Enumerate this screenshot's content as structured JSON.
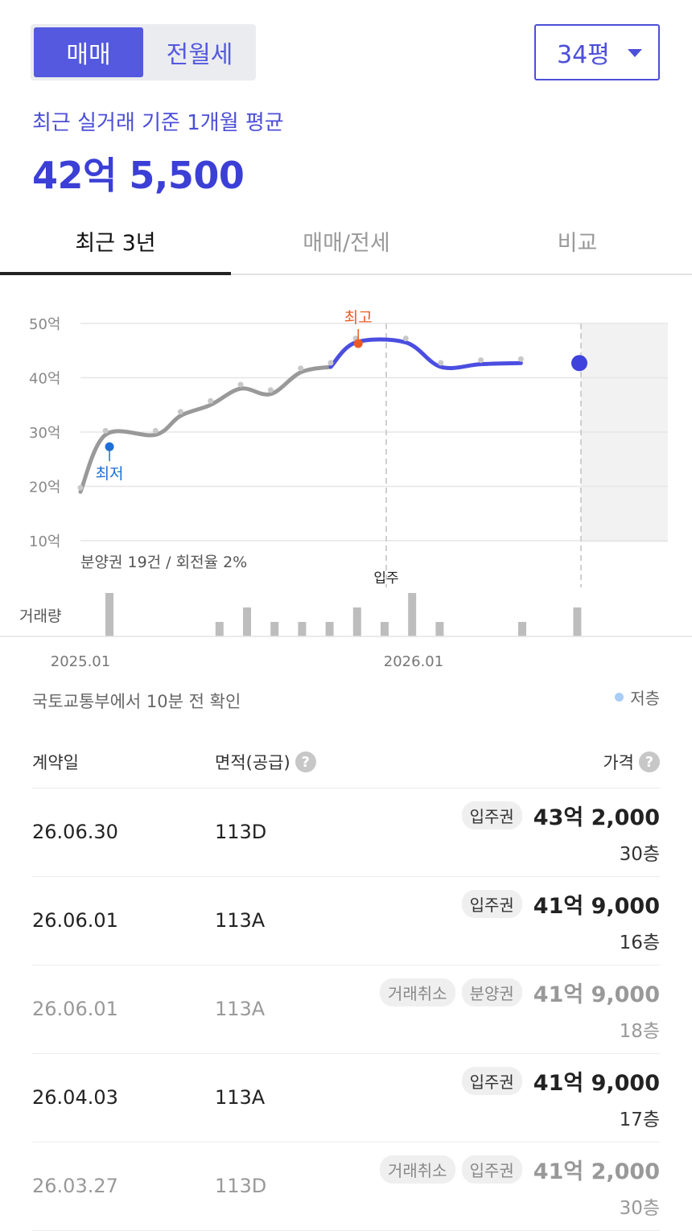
{
  "trade_toggle": {
    "sale": "매매",
    "rent": "전월세"
  },
  "size_selector": {
    "value": "34평"
  },
  "summary": {
    "label": "최근 실거래 기준 1개월 평균",
    "price": "42억 5,500"
  },
  "tabs": [
    "최근 3년",
    "매매/전세",
    "비교"
  ],
  "chart_data": {
    "type": "line",
    "yticks": [
      "50억",
      "40억",
      "30억",
      "20억",
      "10억"
    ],
    "y_values": [
      50,
      40,
      30,
      20,
      10
    ],
    "ylim": [
      10,
      50
    ],
    "x_labels": [
      "2025.01",
      "2026.01"
    ],
    "series": [
      {
        "segment": "past",
        "color": "#999999",
        "points": [
          [
            0.0,
            19
          ],
          [
            0.05,
            29.5
          ],
          [
            0.15,
            29.5
          ],
          [
            0.2,
            33
          ],
          [
            0.26,
            35
          ],
          [
            0.32,
            38
          ],
          [
            0.38,
            37
          ],
          [
            0.44,
            41
          ],
          [
            0.5,
            42
          ]
        ]
      },
      {
        "segment": "recent",
        "color": "#4b4ee0",
        "points": [
          [
            0.5,
            42
          ],
          [
            0.55,
            46.5
          ],
          [
            0.65,
            46.5
          ],
          [
            0.72,
            42
          ],
          [
            0.8,
            42.5
          ],
          [
            0.88,
            42.7
          ]
        ]
      }
    ],
    "annotations": {
      "min_label": "최저",
      "max_label": "최고",
      "move_in_label": "입주"
    },
    "presale_note": "분양권 19건 / 회전율 2%",
    "volume_label": "거래량",
    "volume_bars": [
      3,
      0,
      0,
      0,
      1,
      2,
      1,
      1,
      1,
      2,
      1,
      3,
      1,
      0,
      0,
      1,
      0,
      2
    ]
  },
  "source_note": "국토교통부에서 10분 전 확인",
  "legend": {
    "low_floor": "저층"
  },
  "table": {
    "headers": {
      "date": "계약일",
      "area": "면적(공급)",
      "price": "가격"
    },
    "rows": [
      {
        "date": "26.06.30",
        "area": "113D",
        "badges": [
          "입주권"
        ],
        "price": "43억 2,000",
        "floor": "30층",
        "cancelled": false
      },
      {
        "date": "26.06.01",
        "area": "113A",
        "badges": [
          "입주권"
        ],
        "price": "41억 9,000",
        "floor": "16층",
        "cancelled": false
      },
      {
        "date": "26.06.01",
        "area": "113A",
        "badges": [
          "거래취소",
          "분양권"
        ],
        "price": "41억 9,000",
        "floor": "18층",
        "cancelled": true
      },
      {
        "date": "26.04.03",
        "area": "113A",
        "badges": [
          "입주권"
        ],
        "price": "41억 9,000",
        "floor": "17층",
        "cancelled": false
      },
      {
        "date": "26.03.27",
        "area": "113D",
        "badges": [
          "거래취소",
          "입주권"
        ],
        "price": "41억 2,000",
        "floor": "30층",
        "cancelled": true
      }
    ]
  }
}
